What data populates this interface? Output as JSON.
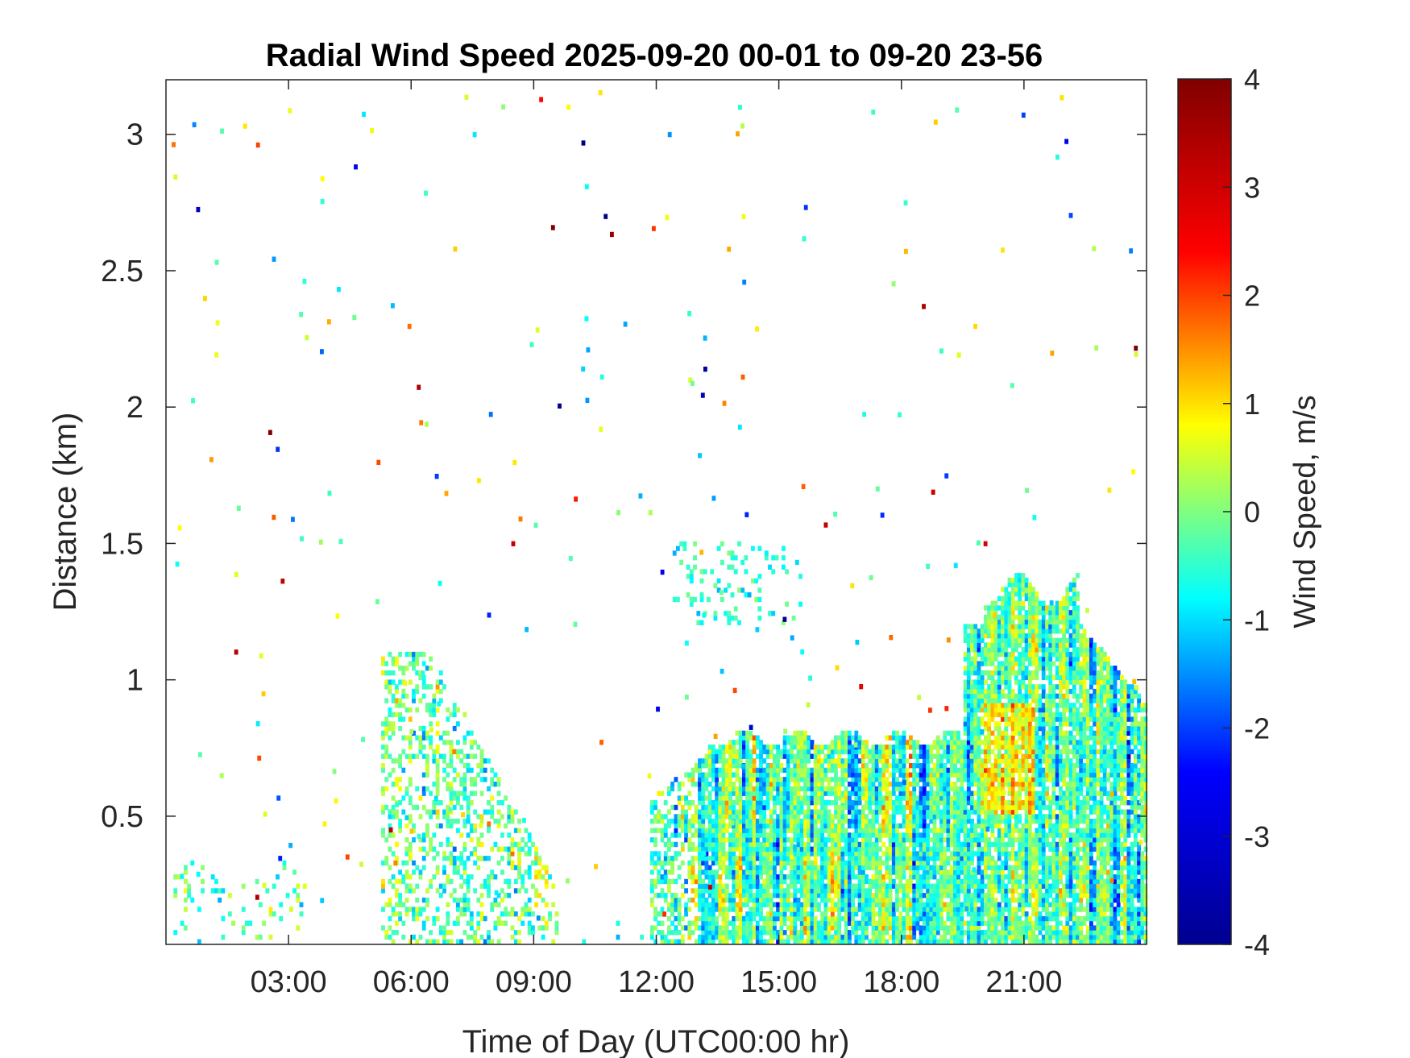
{
  "chart_data": {
    "type": "heatmap",
    "title": "Radial Wind Speed 2025-09-20 00-01 to 09-20 23-56",
    "xlabel": "Time of Day (UTC00:00 hr)",
    "ylabel": "Distance (km)",
    "xlim": [
      0,
      24
    ],
    "ylim": [
      0.03,
      3.2
    ],
    "x_ticks": [
      3,
      6,
      9,
      12,
      15,
      18,
      21
    ],
    "x_tick_labels": [
      "03:00",
      "06:00",
      "09:00",
      "12:00",
      "15:00",
      "18:00",
      "21:00"
    ],
    "y_ticks": [
      0.5,
      1,
      1.5,
      2,
      2.5,
      3
    ],
    "y_tick_labels": [
      "0.5",
      "1",
      "1.5",
      "2",
      "2.5",
      "3"
    ],
    "colorbar": {
      "label": "Wind Speed, m/s",
      "clim": [
        -4,
        4
      ],
      "ticks": [
        4,
        3,
        2,
        1,
        0,
        -1,
        -2,
        -3,
        -4
      ],
      "tick_labels": [
        "4",
        "3",
        "2",
        "1",
        "0",
        "-1",
        "-2",
        "-3",
        "-4"
      ],
      "colormap": "jet"
    },
    "colormap_stops": [
      "#00008f",
      "#0000ff",
      "#00ffff",
      "#ffff00",
      "#ff0000",
      "#800000"
    ],
    "regions": [
      {
        "desc": "scattered returns",
        "t0": 0.2,
        "t1": 3.5,
        "h0": 0.03,
        "h1": 0.3,
        "mean": 0.3
      },
      {
        "desc": "descending plume",
        "t0": 5.2,
        "t1": 9.6,
        "h0": 0.03,
        "h1": 1.1,
        "mean": -0.3
      },
      {
        "desc": "aloft patch",
        "t0": 12.4,
        "t1": 15.5,
        "h0": 1.2,
        "h1": 1.5,
        "mean": -0.5
      },
      {
        "desc": "boundary layer",
        "t0": 11.8,
        "t1": 19.5,
        "h0": 0.03,
        "h1": 0.8,
        "mean": -0.2
      },
      {
        "desc": "deep convective layer",
        "t0": 19.5,
        "t1": 24,
        "h0": 0.03,
        "h1": 1.4,
        "mean": -0.4
      }
    ]
  }
}
